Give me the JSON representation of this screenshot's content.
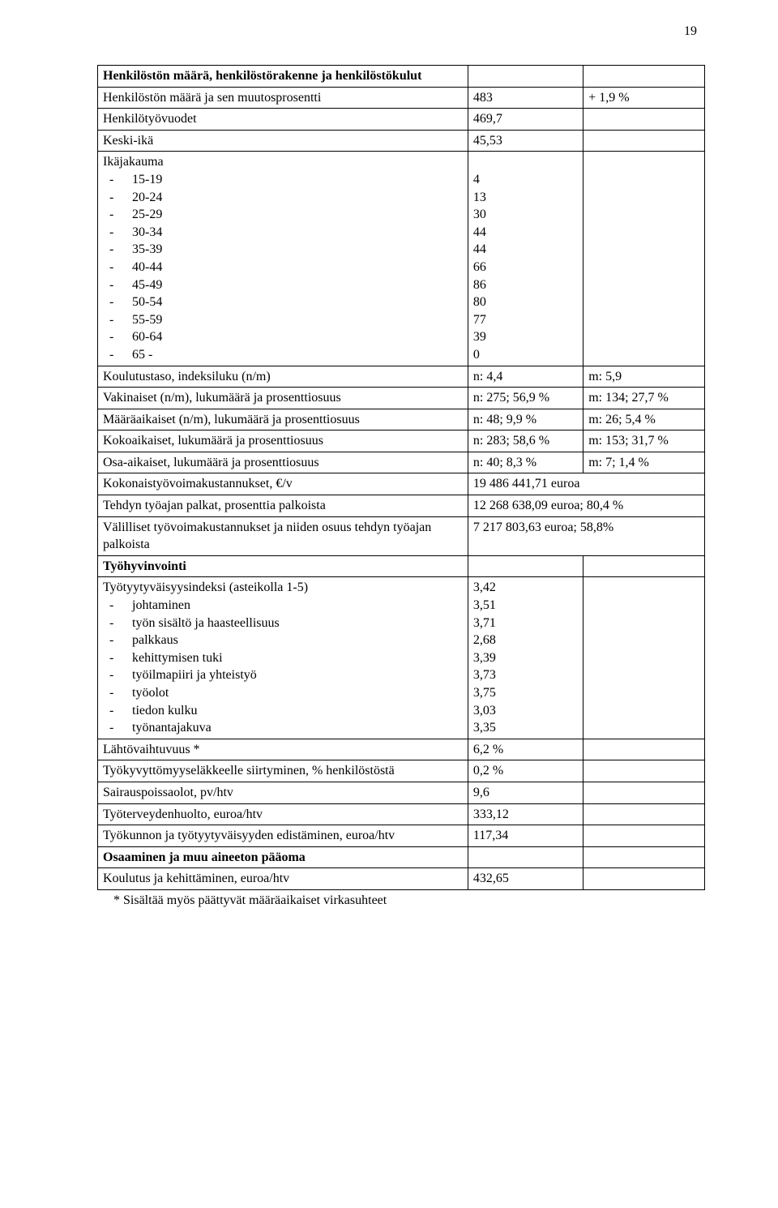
{
  "pageNumber": "19",
  "section1": {
    "title": "Henkilöstön määrä, henkilöstörakenne ja henkilöstökulut",
    "r1": {
      "label": "Henkilöstön määrä ja sen muutosprosentti",
      "v1": "483",
      "v2": "+ 1,9 %"
    },
    "r2": {
      "label": "Henkilötyövuodet",
      "v1": "469,7"
    },
    "r3": {
      "label": "Keski-ikä",
      "v1": "45,53"
    },
    "age": {
      "label": "Ikäjakauma",
      "ranges": [
        "15-19",
        "20-24",
        "25-29",
        "30-34",
        "35-39",
        "40-44",
        "45-49",
        "50-54",
        "55-59",
        "60-64",
        "65 -"
      ],
      "values": [
        "4",
        "13",
        "30",
        "44",
        "44",
        "66",
        "86",
        "80",
        "77",
        "39",
        "0"
      ]
    },
    "r5": {
      "label": "Koulutustaso, indeksiluku (n/m)",
      "v1": "n: 4,4",
      "v2": "m: 5,9"
    },
    "r6": {
      "label": "Vakinaiset (n/m), lukumäärä ja prosenttiosuus",
      "v1": "n: 275;  56,9 %",
      "v2": "m: 134;  27,7 %"
    },
    "r7": {
      "label": "Määräaikaiset (n/m), lukumäärä ja prosenttiosuus",
      "v1": "n: 48;   9,9 %",
      "v2": "m: 26;   5,4 %"
    },
    "r8": {
      "label": "Kokoaikaiset, lukumäärä ja prosenttiosuus",
      "v1": "n: 283;  58,6 %",
      "v2": "m: 153;  31,7 %"
    },
    "r9": {
      "label": "Osa-aikaiset, lukumäärä ja prosenttiosuus",
      "v1": "n: 40;  8,3 %",
      "v2": "m: 7;   1,4 %"
    },
    "r10": {
      "label": "Kokonaistyövoimakustannukset, €/v",
      "v1": "19 486 441,71 euroa"
    },
    "r11": {
      "label": "Tehdyn työajan palkat, prosenttia palkoista",
      "v1": "12 268 638,09 euroa; 80,4 %"
    },
    "r12": {
      "label": "Välilliset työvoimakustannukset ja niiden osuus tehdyn työajan palkoista",
      "v1": "7 217 803,63 euroa; 58,8%"
    }
  },
  "section2": {
    "title": "Työhyvinvointi",
    "sat": {
      "label": "Työtyytyväisyysindeksi (asteikolla 1-5)",
      "items": [
        "johtaminen",
        "työn sisältö ja haasteellisuus",
        "palkkaus",
        "kehittymisen tuki",
        "työilmapiiri ja yhteistyö",
        "työolot",
        "tiedon kulku",
        "työnantajakuva"
      ],
      "values": [
        "3,42",
        "3,51",
        "3,71",
        "2,68",
        "3,39",
        "3,73",
        "3,75",
        "3,03",
        "3,35"
      ]
    },
    "r2": {
      "label": "Lähtövaihtuvuus *",
      "v1": "6,2 %"
    },
    "r3": {
      "label": "Työkyvyttömyyseläkkeelle siirtyminen, % henkilöstöstä",
      "v1": "0,2 %"
    },
    "r4": {
      "label": "Sairauspoissaolot, pv/htv",
      "v1": "9,6"
    },
    "r5": {
      "label": "Työterveydenhuolto, euroa/htv",
      "v1": "333,12"
    },
    "r6": {
      "label": "Työkunnon ja työtyytyväisyyden edistäminen, euroa/htv",
      "v1": "117,34"
    }
  },
  "section3": {
    "title": "Osaaminen ja muu aineeton pääoma",
    "r1": {
      "label": "Koulutus ja kehittäminen, euroa/htv",
      "v1": "432,65"
    }
  },
  "footnote": "* Sisältää myös päättyvät määräaikaiset virkasuhteet"
}
